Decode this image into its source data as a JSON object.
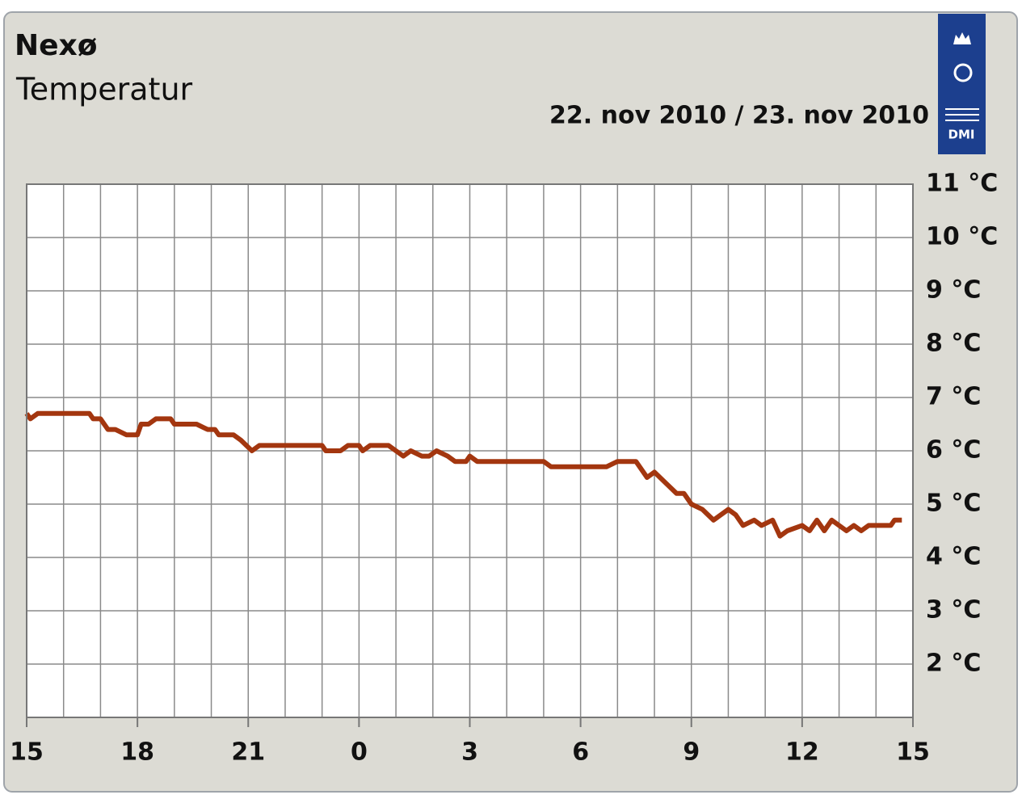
{
  "chart_data": {
    "type": "line",
    "title": "Nexø",
    "subtitle": "Temperatur",
    "date_label": "22. nov 2010 / 23. nov 2010",
    "logo_text": "DMI",
    "x": [
      0,
      0.1,
      0.3,
      1.7,
      1.8,
      2.0,
      2.2,
      2.4,
      2.7,
      3.0,
      3.1,
      3.3,
      3.5,
      3.9,
      4.0,
      4.6,
      4.9,
      5.1,
      5.2,
      5.6,
      5.8,
      6.1,
      6.3,
      8.0,
      8.1,
      8.5,
      8.7,
      9.0,
      9.1,
      9.3,
      9.8,
      10.0,
      10.2,
      10.4,
      10.7,
      10.9,
      11.1,
      11.4,
      11.6,
      11.9,
      12.0,
      12.2,
      14.0,
      14.2,
      15.7,
      16.0,
      16.5,
      16.8,
      17.0,
      17.3,
      17.6,
      17.8,
      18.0,
      18.3,
      18.6,
      19.0,
      19.2,
      19.4,
      19.7,
      19.9,
      20.2,
      20.4,
      20.6,
      21.0,
      21.2,
      21.4,
      21.6,
      21.8,
      22.2,
      22.4,
      22.6,
      22.8,
      23.4,
      23.5,
      23.7
    ],
    "series": [
      {
        "color": "#a3360f",
        "values": [
          6.7,
          6.6,
          6.7,
          6.7,
          6.6,
          6.6,
          6.4,
          6.4,
          6.3,
          6.3,
          6.5,
          6.5,
          6.6,
          6.6,
          6.5,
          6.5,
          6.4,
          6.4,
          6.3,
          6.3,
          6.2,
          6.0,
          6.1,
          6.1,
          6.0,
          6.0,
          6.1,
          6.1,
          6.0,
          6.1,
          6.1,
          6.0,
          5.9,
          6.0,
          5.9,
          5.9,
          6.0,
          5.9,
          5.8,
          5.8,
          5.9,
          5.8,
          5.8,
          5.7,
          5.7,
          5.8,
          5.8,
          5.5,
          5.6,
          5.4,
          5.2,
          5.2,
          5.0,
          4.9,
          4.7,
          4.9,
          4.8,
          4.6,
          4.7,
          4.6,
          4.7,
          4.4,
          4.5,
          4.6,
          4.5,
          4.7,
          4.5,
          4.7,
          4.5,
          4.6,
          4.5,
          4.6,
          4.6,
          4.7,
          4.7
        ]
      }
    ],
    "xlim": [
      0,
      24
    ],
    "xticks": [
      {
        "value": 0,
        "label": "15"
      },
      {
        "value": 3,
        "label": "18"
      },
      {
        "value": 6,
        "label": "21"
      },
      {
        "value": 9,
        "label": "0"
      },
      {
        "value": 12,
        "label": "3"
      },
      {
        "value": 15,
        "label": "6"
      },
      {
        "value": 18,
        "label": "9"
      },
      {
        "value": 21,
        "label": "12"
      },
      {
        "value": 24,
        "label": "15"
      }
    ],
    "xgrid": [
      1,
      2,
      4,
      5,
      7,
      8,
      10,
      11,
      13,
      14,
      16,
      17,
      19,
      20,
      22,
      23
    ],
    "ylim": [
      1,
      11
    ],
    "yticks": [
      {
        "value": 2,
        "label": "2 °C"
      },
      {
        "value": 3,
        "label": "3 °C"
      },
      {
        "value": 4,
        "label": "4 °C"
      },
      {
        "value": 5,
        "label": "5 °C"
      },
      {
        "value": 6,
        "label": "6 °C"
      },
      {
        "value": 7,
        "label": "7 °C"
      },
      {
        "value": 8,
        "label": "8 °C"
      },
      {
        "value": 9,
        "label": "9 °C"
      },
      {
        "value": 10,
        "label": "10 °C"
      },
      {
        "value": 11,
        "label": "11 °C"
      }
    ],
    "grid": true
  }
}
